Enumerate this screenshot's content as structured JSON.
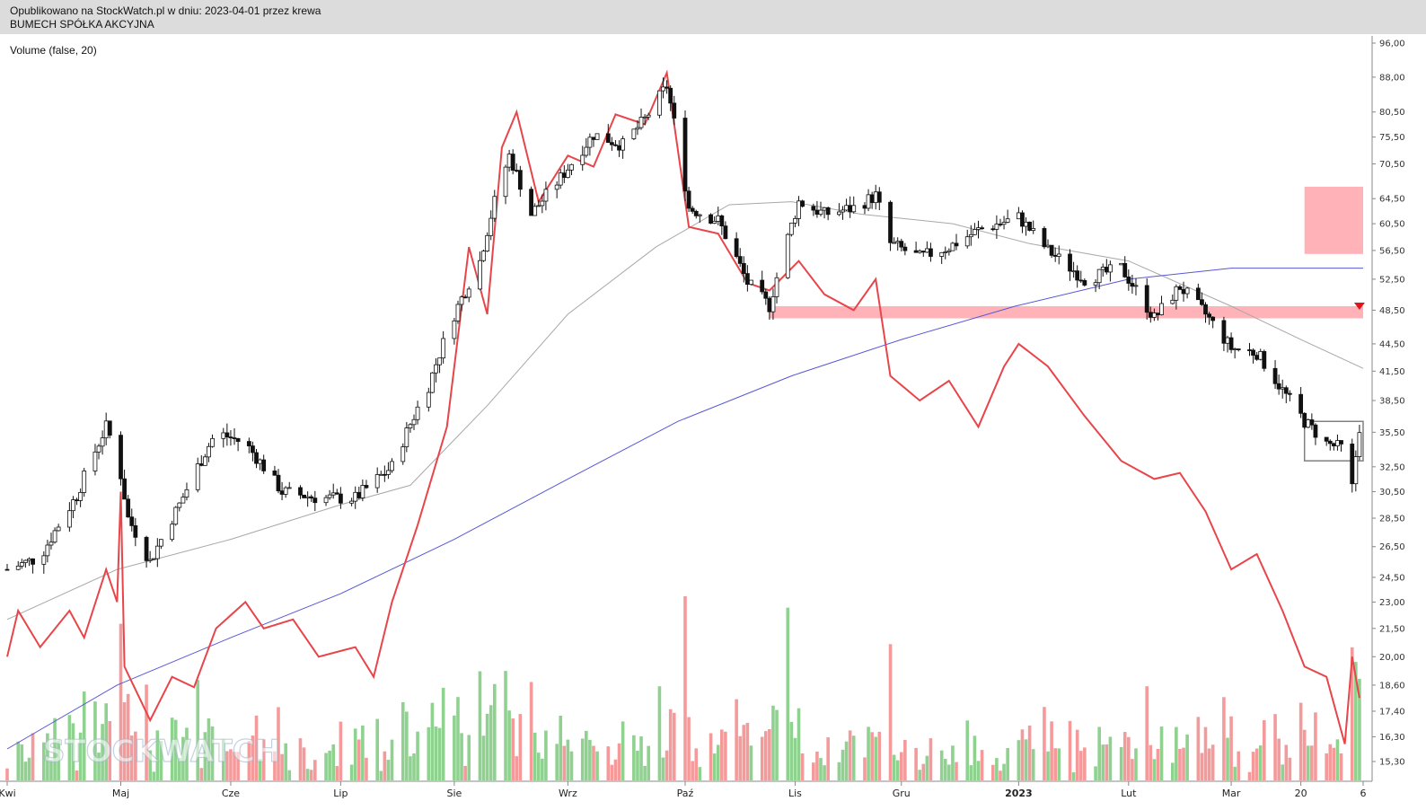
{
  "header": {
    "published": "Opublikowano na StockWatch.pl w dniu: 2023-04-01 przez krewa",
    "company": "BUMECH SPÓŁKA AKCYJNA"
  },
  "indicator_label": "Volume (false, 20)",
  "watermark": "STOCKWATCH",
  "colors": {
    "up_candle": "#ffffff",
    "down_candle": "#111111",
    "ma_short": "#a8a8a8",
    "ma_long": "#5757d6",
    "indicator_line": "#e8454a",
    "volume_up": "#8fd18f",
    "volume_down": "#f49a9a",
    "resistance_zone": "#ffb3b8",
    "target_zone": "#ffb3b8",
    "range_box": "#808080",
    "marker": "#e0141b"
  },
  "chart_data": {
    "type": "candlestick",
    "title": "BUMECH SPÓŁKA AKCYJNA",
    "subtitle": "Opublikowano na StockWatch.pl w dniu: 2023-04-01 przez krewa",
    "y_axis": {
      "scale": "log",
      "ticks": [
        "96,00",
        "88,00",
        "80,50",
        "75,50",
        "70,50",
        "64,50",
        "60,50",
        "56,50",
        "52,50",
        "48,50",
        "44,50",
        "41,50",
        "38,50",
        "35,50",
        "32,50",
        "30,50",
        "28,50",
        "26,50",
        "24,50",
        "23,00",
        "21,50",
        "20,00",
        "18,60",
        "17,40",
        "16,30",
        "15,30"
      ],
      "range": [
        15.3,
        96.0
      ]
    },
    "x_axis": {
      "ticks": [
        "Kwi",
        "Maj",
        "Cze",
        "Lip",
        "Sie",
        "Wrz",
        "Paź",
        "Lis",
        "Gru",
        "2023",
        "Lut",
        "Mar",
        "20",
        "6"
      ],
      "range": [
        "2022-04-01",
        "2023-04-06"
      ]
    },
    "price_anchors": [
      {
        "date": "2022-04-01",
        "close": 25.0
      },
      {
        "date": "2022-04-10",
        "close": 25.8
      },
      {
        "date": "2022-04-20",
        "close": 30.2
      },
      {
        "date": "2022-04-28",
        "close": 36.0
      },
      {
        "date": "2022-05-01",
        "close": 33.5
      },
      {
        "date": "2022-05-04",
        "close": 28.5
      },
      {
        "date": "2022-05-10",
        "close": 25.5
      },
      {
        "date": "2022-05-18",
        "close": 29.5
      },
      {
        "date": "2022-05-28",
        "close": 35.5
      },
      {
        "date": "2022-06-05",
        "close": 34.5
      },
      {
        "date": "2022-06-15",
        "close": 30.5
      },
      {
        "date": "2022-06-25",
        "close": 30.0
      },
      {
        "date": "2022-07-05",
        "close": 30.0
      },
      {
        "date": "2022-07-15",
        "close": 32.5
      },
      {
        "date": "2022-07-25",
        "close": 40.0
      },
      {
        "date": "2022-08-01",
        "close": 48.0
      },
      {
        "date": "2022-08-08",
        "close": 55.0
      },
      {
        "date": "2022-08-12",
        "close": 64.0
      },
      {
        "date": "2022-08-16",
        "close": 72.0
      },
      {
        "date": "2022-08-22",
        "close": 62.0
      },
      {
        "date": "2022-08-30",
        "close": 68.0
      },
      {
        "date": "2022-09-08",
        "close": 76.0
      },
      {
        "date": "2022-09-16",
        "close": 74.0
      },
      {
        "date": "2022-09-22",
        "close": 79.0
      },
      {
        "date": "2022-09-28",
        "close": 86.0
      },
      {
        "date": "2022-10-04",
        "close": 63.0
      },
      {
        "date": "2022-10-12",
        "close": 61.0
      },
      {
        "date": "2022-10-20",
        "close": 52.0
      },
      {
        "date": "2022-10-26",
        "close": 49.0
      },
      {
        "date": "2022-11-03",
        "close": 64.0
      },
      {
        "date": "2022-11-10",
        "close": 62.0
      },
      {
        "date": "2022-11-18",
        "close": 63.0
      },
      {
        "date": "2022-11-24",
        "close": 65.0
      },
      {
        "date": "2022-11-28",
        "close": 57.5
      },
      {
        "date": "2022-12-06",
        "close": 55.5
      },
      {
        "date": "2022-12-14",
        "close": 57.0
      },
      {
        "date": "2022-12-22",
        "close": 59.5
      },
      {
        "date": "2023-01-02",
        "close": 61.5
      },
      {
        "date": "2023-01-10",
        "close": 56.5
      },
      {
        "date": "2023-01-20",
        "close": 52.5
      },
      {
        "date": "2023-01-30",
        "close": 54.0
      },
      {
        "date": "2023-02-08",
        "close": 47.5
      },
      {
        "date": "2023-02-15",
        "close": 51.5
      },
      {
        "date": "2023-02-22",
        "close": 48.0
      },
      {
        "date": "2023-03-01",
        "close": 44.0
      },
      {
        "date": "2023-03-08",
        "close": 43.5
      },
      {
        "date": "2023-03-15",
        "close": 39.5
      },
      {
        "date": "2023-03-21",
        "close": 36.5
      },
      {
        "date": "2023-03-27",
        "close": 34.5
      },
      {
        "date": "2023-04-01",
        "close": 34.0
      },
      {
        "date": "2023-04-03",
        "close": 30.8
      },
      {
        "date": "2023-04-05",
        "close": 36.0
      }
    ],
    "ma_short_anchors": [
      {
        "date": "2022-04-01",
        "value": 22.0
      },
      {
        "date": "2022-05-01",
        "value": 25.0
      },
      {
        "date": "2022-06-01",
        "value": 27.0
      },
      {
        "date": "2022-07-01",
        "value": 29.5
      },
      {
        "date": "2022-07-20",
        "value": 31.0
      },
      {
        "date": "2022-08-10",
        "value": 38.0
      },
      {
        "date": "2022-09-01",
        "value": 48.0
      },
      {
        "date": "2022-09-25",
        "value": 57.0
      },
      {
        "date": "2022-10-15",
        "value": 63.5
      },
      {
        "date": "2022-11-01",
        "value": 64.0
      },
      {
        "date": "2022-11-20",
        "value": 62.0
      },
      {
        "date": "2022-12-15",
        "value": 60.5
      },
      {
        "date": "2023-01-05",
        "value": 57.5
      },
      {
        "date": "2023-02-01",
        "value": 55.0
      },
      {
        "date": "2023-03-01",
        "value": 49.0
      },
      {
        "date": "2023-03-20",
        "value": 45.0
      },
      {
        "date": "2023-04-06",
        "value": 41.8
      }
    ],
    "ma_long_anchors": [
      {
        "date": "2022-04-01",
        "value": 15.8
      },
      {
        "date": "2022-05-01",
        "value": 18.6
      },
      {
        "date": "2022-06-01",
        "value": 21.0
      },
      {
        "date": "2022-07-01",
        "value": 23.5
      },
      {
        "date": "2022-08-01",
        "value": 27.0
      },
      {
        "date": "2022-09-01",
        "value": 31.5
      },
      {
        "date": "2022-10-01",
        "value": 36.5
      },
      {
        "date": "2022-11-01",
        "value": 41.0
      },
      {
        "date": "2022-12-01",
        "value": 45.0
      },
      {
        "date": "2023-01-01",
        "value": 49.0
      },
      {
        "date": "2023-02-01",
        "value": 52.5
      },
      {
        "date": "2023-03-01",
        "value": 54.0
      },
      {
        "date": "2023-04-06",
        "value": 54.0
      }
    ],
    "indicator_line_anchors": [
      {
        "date": "2022-04-01",
        "value": 20.0
      },
      {
        "date": "2022-04-04",
        "value": 22.5
      },
      {
        "date": "2022-04-10",
        "value": 20.5
      },
      {
        "date": "2022-04-18",
        "value": 22.5
      },
      {
        "date": "2022-04-22",
        "value": 21.0
      },
      {
        "date": "2022-04-28",
        "value": 25.0
      },
      {
        "date": "2022-05-01",
        "value": 23.0
      },
      {
        "date": "2022-05-02",
        "value": 30.5
      },
      {
        "date": "2022-05-03",
        "value": 19.5
      },
      {
        "date": "2022-05-10",
        "value": 17.0
      },
      {
        "date": "2022-05-16",
        "value": 19.0
      },
      {
        "date": "2022-05-22",
        "value": 18.5
      },
      {
        "date": "2022-05-28",
        "value": 21.5
      },
      {
        "date": "2022-06-05",
        "value": 23.0
      },
      {
        "date": "2022-06-10",
        "value": 21.5
      },
      {
        "date": "2022-06-18",
        "value": 22.0
      },
      {
        "date": "2022-06-25",
        "value": 20.0
      },
      {
        "date": "2022-07-05",
        "value": 20.5
      },
      {
        "date": "2022-07-10",
        "value": 19.0
      },
      {
        "date": "2022-07-15",
        "value": 23.0
      },
      {
        "date": "2022-07-22",
        "value": 28.0
      },
      {
        "date": "2022-07-30",
        "value": 36.0
      },
      {
        "date": "2022-08-05",
        "value": 57.0
      },
      {
        "date": "2022-08-10",
        "value": 48.0
      },
      {
        "date": "2022-08-14",
        "value": 73.5
      },
      {
        "date": "2022-08-18",
        "value": 80.5
      },
      {
        "date": "2022-08-24",
        "value": 64.0
      },
      {
        "date": "2022-09-01",
        "value": 72.0
      },
      {
        "date": "2022-09-08",
        "value": 70.0
      },
      {
        "date": "2022-09-14",
        "value": 80.0
      },
      {
        "date": "2022-09-22",
        "value": 78.0
      },
      {
        "date": "2022-09-28",
        "value": 89.0
      },
      {
        "date": "2022-10-04",
        "value": 60.0
      },
      {
        "date": "2022-10-12",
        "value": 59.0
      },
      {
        "date": "2022-10-20",
        "value": 52.0
      },
      {
        "date": "2022-10-26",
        "value": 51.0
      },
      {
        "date": "2022-11-03",
        "value": 55.0
      },
      {
        "date": "2022-11-10",
        "value": 50.5
      },
      {
        "date": "2022-11-18",
        "value": 48.5
      },
      {
        "date": "2022-11-24",
        "value": 52.5
      },
      {
        "date": "2022-11-28",
        "value": 41.0
      },
      {
        "date": "2022-12-06",
        "value": 38.5
      },
      {
        "date": "2022-12-14",
        "value": 40.5
      },
      {
        "date": "2022-12-22",
        "value": 36.0
      },
      {
        "date": "2022-12-29",
        "value": 42.0
      },
      {
        "date": "2023-01-02",
        "value": 44.5
      },
      {
        "date": "2023-01-10",
        "value": 42.0
      },
      {
        "date": "2023-01-20",
        "value": 37.0
      },
      {
        "date": "2023-01-30",
        "value": 33.0
      },
      {
        "date": "2023-02-08",
        "value": 31.5
      },
      {
        "date": "2023-02-15",
        "value": 32.0
      },
      {
        "date": "2023-02-22",
        "value": 29.0
      },
      {
        "date": "2023-03-01",
        "value": 25.0
      },
      {
        "date": "2023-03-08",
        "value": 26.0
      },
      {
        "date": "2023-03-15",
        "value": 22.5
      },
      {
        "date": "2023-03-21",
        "value": 19.5
      },
      {
        "date": "2023-03-27",
        "value": 19.0
      },
      {
        "date": "2023-04-01",
        "value": 16.0
      },
      {
        "date": "2023-04-03",
        "value": 20.0
      },
      {
        "date": "2023-04-05",
        "value": 18.0
      }
    ],
    "zones": [
      {
        "name": "resistance-zone",
        "from": "2022-10-26",
        "to": "2023-04-06",
        "low": 47.5,
        "high": 49.0
      },
      {
        "name": "target-zone",
        "from": "2023-03-21",
        "to": "2023-04-06",
        "low": 56.0,
        "high": 66.5
      },
      {
        "name": "consolidation-box",
        "from": "2023-03-21",
        "to": "2023-04-06",
        "low": 33.0,
        "high": 36.5
      }
    ],
    "marker": {
      "date": "2023-04-05",
      "value": 49.0,
      "shape": "down-triangle"
    },
    "grid": false,
    "legend": "none"
  }
}
